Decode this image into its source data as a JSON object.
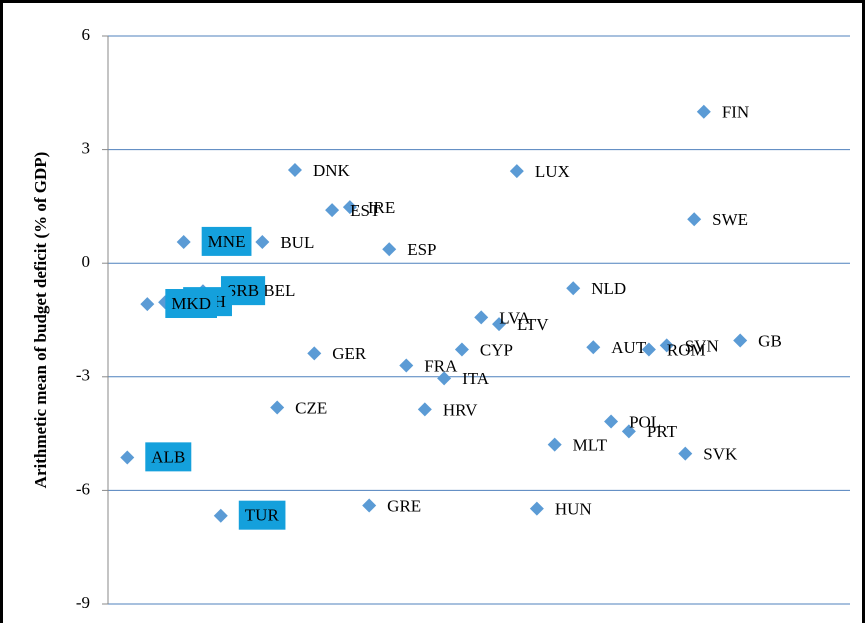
{
  "chart_data": {
    "type": "scatter",
    "y_label": "Arithmetic mean of budget deficit (% of GDP)",
    "labels": [
      "FIN",
      "DNK",
      "LUX",
      "EST",
      "IRE",
      "SWE",
      "MNE",
      "BUL",
      "ESP",
      "NLD",
      "BEL",
      "SRB",
      "B&H",
      "MKD",
      "LVA",
      "LTV",
      "AUT",
      "ROM",
      "SVN",
      "GB",
      "CYP",
      "GER",
      "FRA",
      "ITA",
      "CZE",
      "HRV",
      "POL",
      "PRT",
      "MLT",
      "SVK",
      "ALB",
      "GRE",
      "HUN",
      "TUR"
    ],
    "x": [
      80.3,
      25.2,
      55.1,
      30.2,
      32.6,
      79.0,
      10.2,
      20.8,
      37.9,
      62.7,
      18.5,
      12.8,
      7.7,
      5.3,
      50.3,
      52.7,
      65.4,
      72.9,
      75.3,
      85.2,
      47.7,
      27.8,
      40.2,
      45.3,
      22.8,
      42.7,
      67.8,
      70.2,
      60.2,
      77.8,
      2.6,
      35.2,
      57.8,
      15.2
    ],
    "y": [
      4.0,
      2.46,
      2.43,
      1.4,
      1.48,
      1.16,
      0.56,
      0.56,
      0.37,
      -0.66,
      -0.71,
      -0.74,
      -1.03,
      -1.08,
      -1.43,
      -1.61,
      -2.22,
      -2.28,
      -2.17,
      -2.04,
      -2.28,
      -2.38,
      -2.7,
      -3.04,
      -3.81,
      -3.86,
      -4.18,
      -4.44,
      -4.79,
      -5.03,
      -5.13,
      -6.4,
      -6.48,
      -6.67
    ],
    "highlighted": [
      false,
      false,
      false,
      false,
      false,
      false,
      true,
      false,
      false,
      false,
      false,
      true,
      true,
      true,
      false,
      false,
      false,
      false,
      false,
      false,
      false,
      false,
      false,
      false,
      false,
      false,
      false,
      false,
      false,
      false,
      true,
      false,
      false,
      true
    ],
    "color": "#5b9bd5",
    "highlight_color": "#14a0dc",
    "xlim": [
      0,
      100
    ],
    "ylim": [
      -9,
      6
    ],
    "yticks": [
      -9,
      -6,
      -3,
      0,
      3,
      6
    ],
    "grid": true
  }
}
